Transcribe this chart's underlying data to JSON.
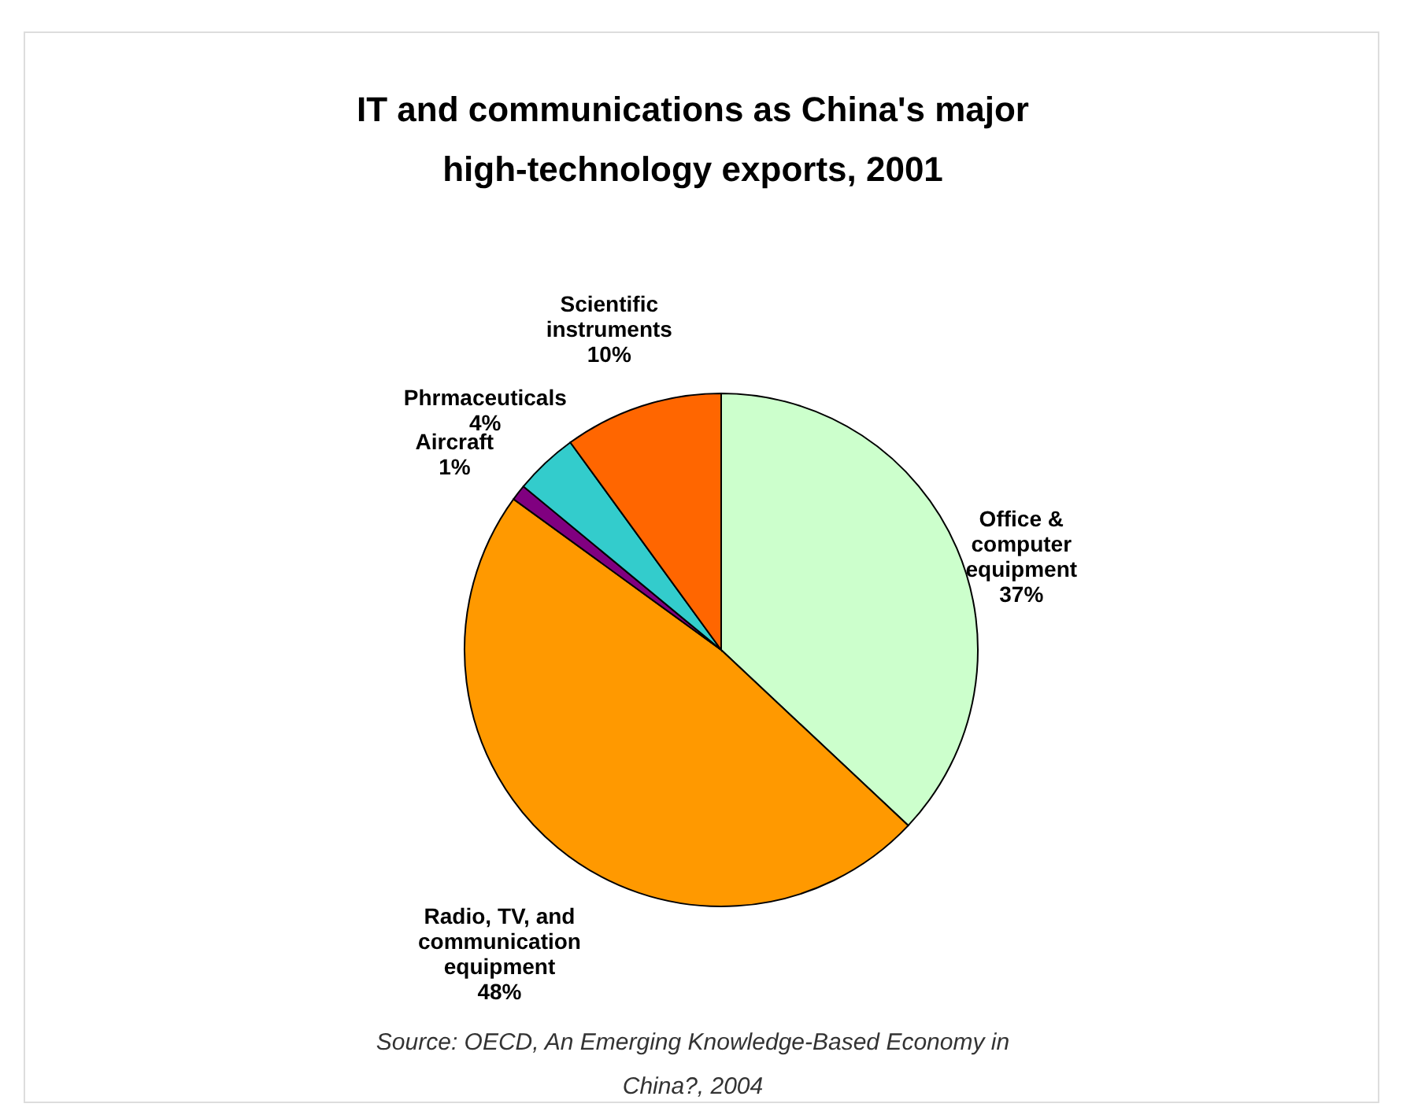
{
  "chart_data": {
    "type": "pie",
    "title": "IT and communications as China's major high-technology exports, 2001",
    "categories": [
      "Office & computer equipment",
      "Radio, TV, and communication equipment",
      "Aircraft",
      "Phrmaceuticals",
      "Scientific instruments"
    ],
    "values": [
      37,
      48,
      1,
      4,
      10
    ],
    "value_labels": [
      "37%",
      "48%",
      "1%",
      "4%",
      "10%"
    ],
    "colors": [
      "#ccffcc",
      "#ff9900",
      "#800080",
      "#33cccc",
      "#ff6600"
    ],
    "annotations": [
      "Source: OECD, An Emerging Knowledge-Based Economy in China?, 2004"
    ],
    "legend": false
  }
}
